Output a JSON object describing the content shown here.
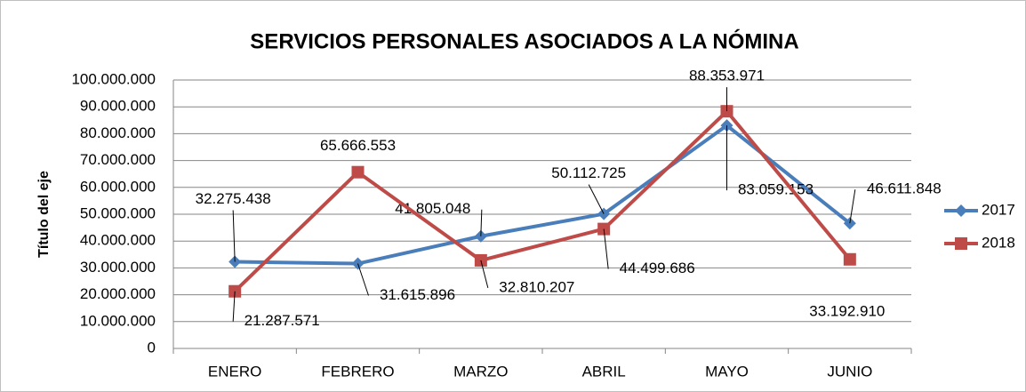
{
  "chart_data": {
    "type": "line",
    "title": "SERVICIOS PERSONALES ASOCIADOS A LA NÓMINA",
    "y_label": "Título del eje",
    "categories": [
      "ENERO",
      "FEBRERO",
      "MARZO",
      "ABRIL",
      "MAYO",
      "JUNIO"
    ],
    "series": [
      {
        "name": "2017",
        "color": "#4a7ebb",
        "marker": "diamond",
        "values": [
          32275438,
          31615896,
          41805048,
          50112725,
          83059153,
          46611848
        ],
        "value_labels": [
          "32.275.438",
          "31.615.896",
          "41.805.048",
          "50.112.725",
          "83.059.153",
          "46.611.848"
        ]
      },
      {
        "name": "2018",
        "color": "#be4b48",
        "marker": "square",
        "values": [
          21287571,
          65666553,
          32810207,
          44499686,
          88353971,
          33192910
        ],
        "value_labels": [
          "21.287.571",
          "65.666.553",
          "32.810.207",
          "44.499.686",
          "88.353.971",
          "33.192.910"
        ]
      }
    ],
    "ylim": [
      0,
      100000000
    ],
    "yticks": [
      0,
      {
        "value": 10000000,
        "label": "10.000.000"
      },
      {
        "value": 20000000,
        "label": "20.000.000"
      },
      {
        "value": 30000000,
        "label": "30.000.000"
      },
      {
        "value": 40000000,
        "label": "40.000.000"
      },
      {
        "value": 50000000,
        "label": "50.000.000"
      },
      {
        "value": 60000000,
        "label": "60.000.000"
      },
      {
        "value": 70000000,
        "label": "70.000.000"
      },
      {
        "value": 80000000,
        "label": "80.000.000"
      },
      {
        "value": 90000000,
        "label": "90.000.000"
      },
      {
        "value": 100000000,
        "label": "100.000.000"
      }
    ],
    "grid": true,
    "legend": "right"
  }
}
